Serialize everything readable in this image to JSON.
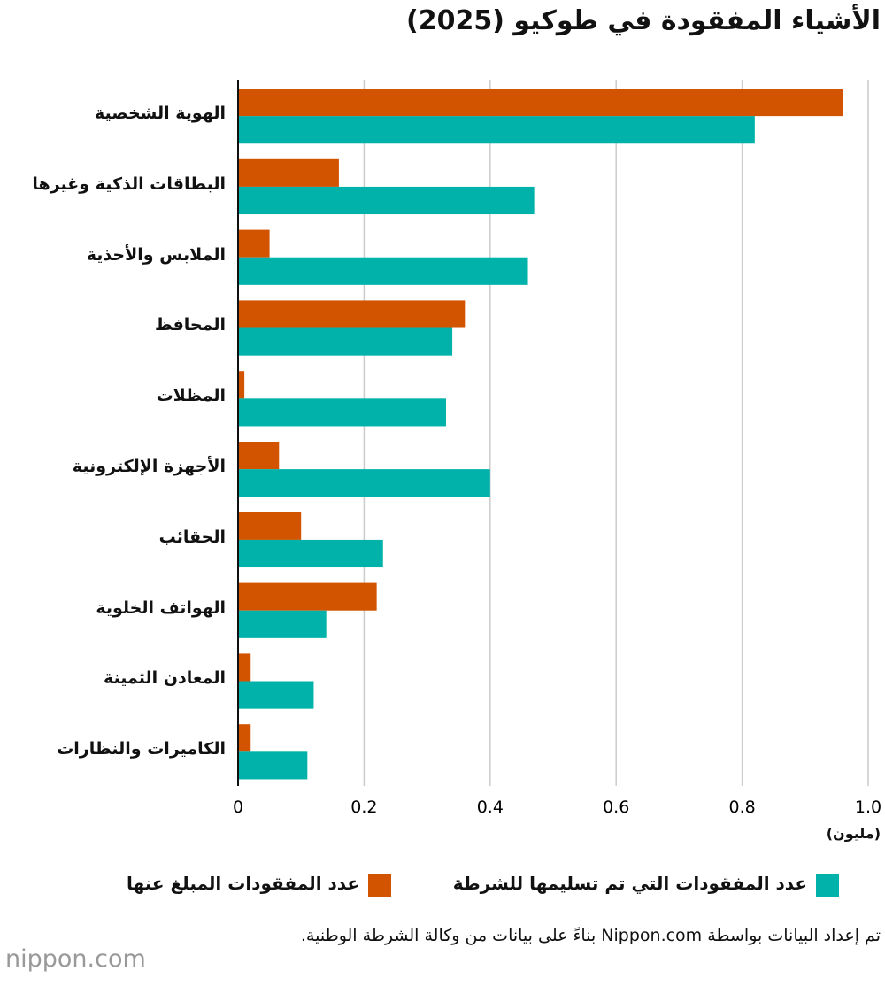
{
  "chart_data": {
    "type": "hbar",
    "title": "الأشياء المفقودة في طوكيو (2025)",
    "categories": [
      "الهوية الشخصية",
      "البطاقات الذكية وغيرها",
      "الملابس والأحذية",
      "المحافظ",
      "المظلات",
      "الأجهزة الإلكترونية",
      "الحقائب",
      "الهواتف الخلوية",
      "المعادن الثمينة",
      "الكاميرات والنظارات"
    ],
    "series": [
      {
        "name": "عدد المفقودات المبلغ عنها",
        "color": "#d35400",
        "values": [
          0.96,
          0.16,
          0.05,
          0.36,
          0.01,
          0.065,
          0.1,
          0.22,
          0.02,
          0.02
        ]
      },
      {
        "name": "عدد المفقودات التي تم تسليمها للشرطة",
        "color": "#00b2a9",
        "values": [
          0.82,
          0.47,
          0.46,
          0.34,
          0.33,
          0.4,
          0.23,
          0.14,
          0.12,
          0.11
        ]
      }
    ],
    "xlim": [
      0,
      1
    ],
    "xticks": [
      0,
      0.2,
      0.4,
      0.6,
      0.8,
      {
        "value": 1,
        "label": "1.0"
      }
    ],
    "x_unit": "(مليون)",
    "grid": true,
    "source": "تم إعداد البيانات بواسطة Nippon.com بناءً على بيانات من وكالة الشرطة الوطنية.",
    "logo": "nippon.com"
  }
}
